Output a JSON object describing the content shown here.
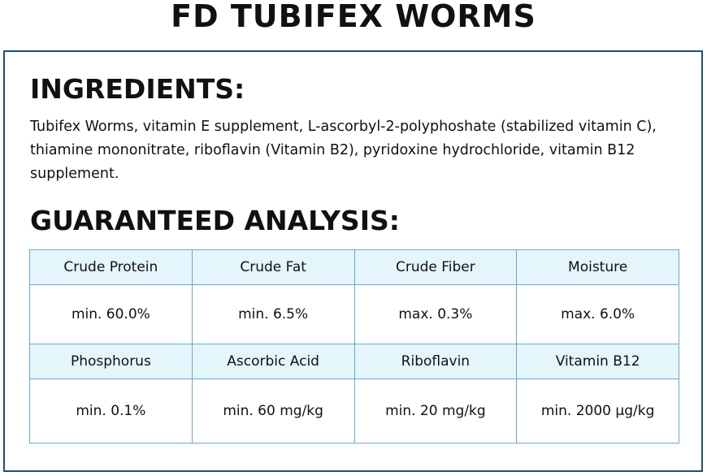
{
  "header": {
    "title": "FD TUBIFEX WORMS"
  },
  "ingredients": {
    "heading": "INGREDIENTS:",
    "text": "Tubifex Worms, vitamin E supplement, L-ascorbyl-2-polyphoshate (stabilized vitamin C), thiamine mononitrate, riboflavin (Vitamin B2), pyridoxine hydrochloride, vitamin B12 supplement."
  },
  "analysis": {
    "heading": "GUARANTEED ANALYSIS:"
  },
  "table": {
    "rows": [
      [
        "Crude Protein",
        "Crude Fat",
        "Crude Fiber",
        "Moisture"
      ],
      [
        "min. 60.0%",
        "min. 6.5%",
        "max. 0.3%",
        "max. 6.0%"
      ],
      [
        "Phosphorus",
        "Ascorbic Acid",
        "Riboflavin",
        "Vitamin B12"
      ],
      [
        "min. 0.1%",
        "min. 60 mg/kg",
        "min. 20 mg/kg",
        "min. 2000 µg/kg"
      ]
    ]
  }
}
